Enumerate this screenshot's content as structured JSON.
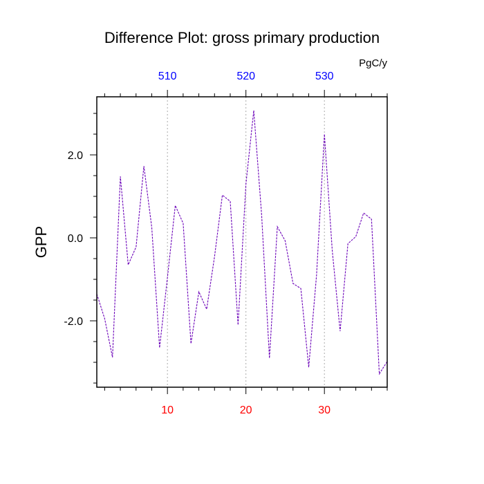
{
  "chart_data": {
    "type": "line",
    "title": "Difference Plot: gross primary production",
    "units": "PgC/y",
    "xlabel": "",
    "ylabel": "GPP",
    "xlim": [
      1,
      38
    ],
    "ylim": [
      -3.6,
      3.4
    ],
    "yticks": [
      -2.0,
      0.0,
      2.0
    ],
    "ytick_labels": [
      "-2.0",
      "0.0",
      "2.0"
    ],
    "xticks_bottom": [
      10,
      20,
      30
    ],
    "xtick_labels_bottom": [
      "10",
      "20",
      "30"
    ],
    "xticks_top": [
      10,
      20,
      30
    ],
    "xtick_labels_top": [
      "510",
      "520",
      "530"
    ],
    "grid": "vertical dotted lines at labeled x ticks",
    "legend": "none",
    "colors": {
      "line": "#6a00b8",
      "bottom_tick_labels": "#ff0000",
      "top_tick_labels": "#0000ff",
      "axes": "#000000",
      "grid": "#aaaaaa"
    },
    "series": [
      {
        "x": [
          1,
          2,
          3,
          4,
          5,
          6,
          7,
          8,
          9,
          10,
          11,
          12,
          13,
          14,
          15,
          16,
          17,
          18,
          19,
          20,
          21,
          22,
          23,
          24,
          25,
          26,
          27,
          28,
          29,
          30,
          31,
          32,
          33,
          34,
          35,
          36,
          37,
          38
        ],
        "values": [
          -1.35,
          -1.95,
          -2.88,
          1.48,
          -0.65,
          -0.22,
          1.73,
          0.25,
          -2.65,
          -0.95,
          0.78,
          0.35,
          -2.55,
          -1.3,
          -1.72,
          -0.45,
          1.03,
          0.88,
          -2.1,
          1.3,
          3.07,
          0.55,
          -2.9,
          0.27,
          -0.07,
          -1.1,
          -1.22,
          -3.12,
          -0.9,
          2.5,
          -0.3,
          -2.25,
          -0.14,
          0.03,
          0.6,
          0.45,
          -3.28,
          -2.98
        ]
      }
    ]
  }
}
